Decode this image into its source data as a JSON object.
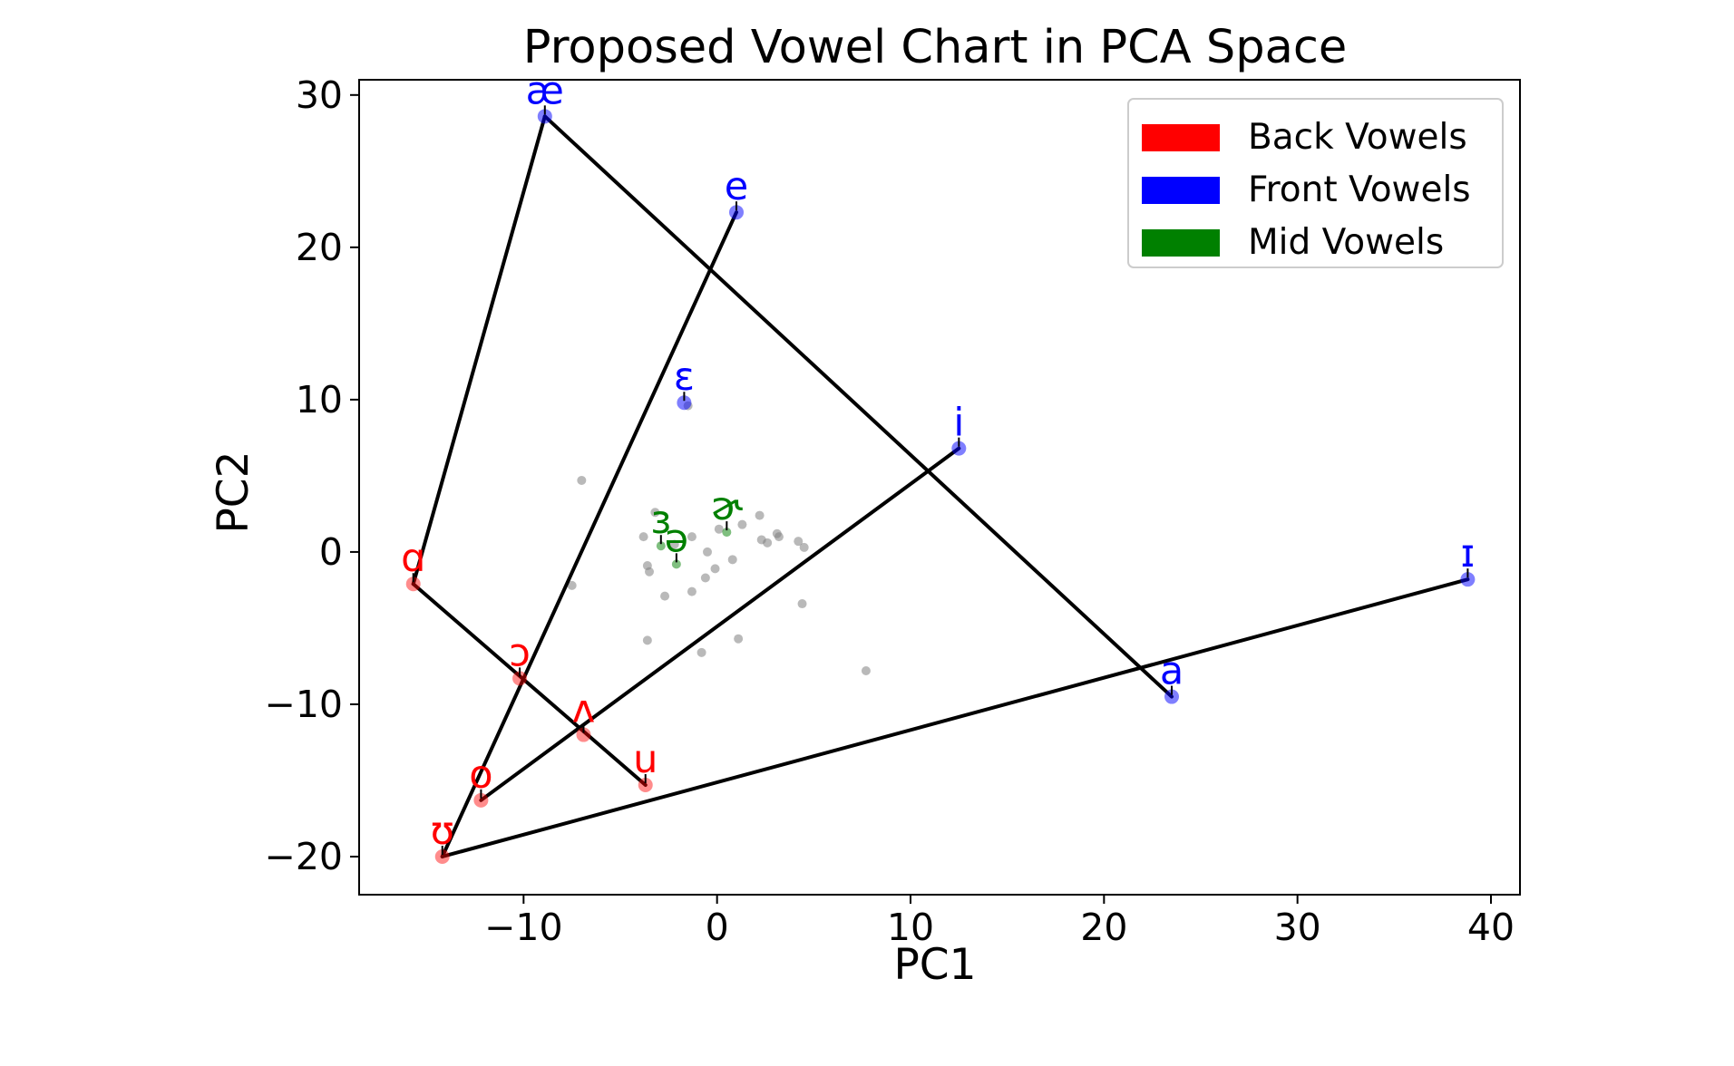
{
  "chart_data": {
    "type": "scatter",
    "title": "Proposed Vowel Chart in PCA Space",
    "xlabel": "PC1",
    "ylabel": "PC2",
    "xlim": [
      -18.5,
      41.5
    ],
    "ylim": [
      -22.5,
      31.0
    ],
    "xticks": [
      -10,
      0,
      10,
      20,
      30,
      40
    ],
    "yticks": [
      -20,
      -10,
      0,
      10,
      20,
      30
    ],
    "xtick_labels": [
      "−10",
      "0",
      "10",
      "20",
      "30",
      "40"
    ],
    "ytick_labels": [
      "−20",
      "−10",
      "0",
      "10",
      "20",
      "30"
    ],
    "grid": false,
    "legend_position": "top-right",
    "legend": [
      {
        "label": "Back Vowels",
        "color": "#ff0000"
      },
      {
        "label": "Front Vowels",
        "color": "#0000ff"
      },
      {
        "label": "Mid Vowels",
        "color": "#008000"
      }
    ],
    "colors": {
      "back": "#ff0000",
      "front": "#0000ff",
      "mid": "#008000",
      "background_points": "#808080",
      "lines": "#000000"
    },
    "vowels": [
      {
        "label": "æ",
        "group": "front",
        "x": -8.9,
        "y": 28.6
      },
      {
        "label": "e",
        "group": "front",
        "x": 1.0,
        "y": 22.3
      },
      {
        "label": "ɛ",
        "group": "front",
        "x": -1.7,
        "y": 9.8
      },
      {
        "label": "i",
        "group": "front",
        "x": 12.5,
        "y": 6.8
      },
      {
        "label": "ɪ",
        "group": "front",
        "x": 38.8,
        "y": -1.8
      },
      {
        "label": "a",
        "group": "front",
        "x": 23.5,
        "y": -9.5
      },
      {
        "label": "ɑ",
        "group": "back",
        "x": -15.7,
        "y": -2.1
      },
      {
        "label": "ɔ",
        "group": "back",
        "x": -10.2,
        "y": -8.3
      },
      {
        "label": "ʌ",
        "group": "back",
        "x": -6.9,
        "y": -12.0
      },
      {
        "label": "u",
        "group": "back",
        "x": -3.7,
        "y": -15.3
      },
      {
        "label": "o",
        "group": "back",
        "x": -12.2,
        "y": -16.3
      },
      {
        "label": "ʊ",
        "group": "back",
        "x": -14.2,
        "y": -20.0
      },
      {
        "label": "ɜ",
        "group": "mid",
        "x": -2.9,
        "y": 0.4
      },
      {
        "label": "ɚ",
        "group": "mid",
        "x": 0.5,
        "y": 1.3
      },
      {
        "label": "ə",
        "group": "mid",
        "x": -2.1,
        "y": -0.8
      }
    ],
    "connections": [
      [
        "ɑ",
        "æ"
      ],
      [
        "æ",
        "a"
      ],
      [
        "ʊ",
        "e"
      ],
      [
        "ʊ",
        "ɪ"
      ],
      [
        "o",
        "i"
      ],
      [
        "ɑ",
        "u"
      ]
    ],
    "background_points": [
      {
        "x": -7.0,
        "y": 4.7
      },
      {
        "x": -7.5,
        "y": -2.2
      },
      {
        "x": -3.8,
        "y": 1.0
      },
      {
        "x": -3.2,
        "y": 2.6
      },
      {
        "x": -2.2,
        "y": 0.5
      },
      {
        "x": -1.3,
        "y": 1.0
      },
      {
        "x": -0.5,
        "y": 0.0
      },
      {
        "x": 0.1,
        "y": 1.5
      },
      {
        "x": 0.8,
        "y": -0.5
      },
      {
        "x": 1.3,
        "y": 1.8
      },
      {
        "x": 2.2,
        "y": 2.4
      },
      {
        "x": 2.3,
        "y": 0.8
      },
      {
        "x": 2.6,
        "y": 0.6
      },
      {
        "x": 3.1,
        "y": 1.2
      },
      {
        "x": 3.2,
        "y": 1.0
      },
      {
        "x": 4.2,
        "y": 0.7
      },
      {
        "x": 4.5,
        "y": 0.3
      },
      {
        "x": -3.6,
        "y": -0.9
      },
      {
        "x": -3.5,
        "y": -1.3
      },
      {
        "x": -2.7,
        "y": -2.9
      },
      {
        "x": -1.3,
        "y": -2.6
      },
      {
        "x": -0.6,
        "y": -1.7
      },
      {
        "x": -0.1,
        "y": -1.1
      },
      {
        "x": -0.8,
        "y": -6.6
      },
      {
        "x": -3.6,
        "y": -5.8
      },
      {
        "x": 1.1,
        "y": -5.7
      },
      {
        "x": 4.4,
        "y": -3.4
      },
      {
        "x": 7.7,
        "y": -7.8
      },
      {
        "x": -1.5,
        "y": 9.6
      }
    ]
  }
}
